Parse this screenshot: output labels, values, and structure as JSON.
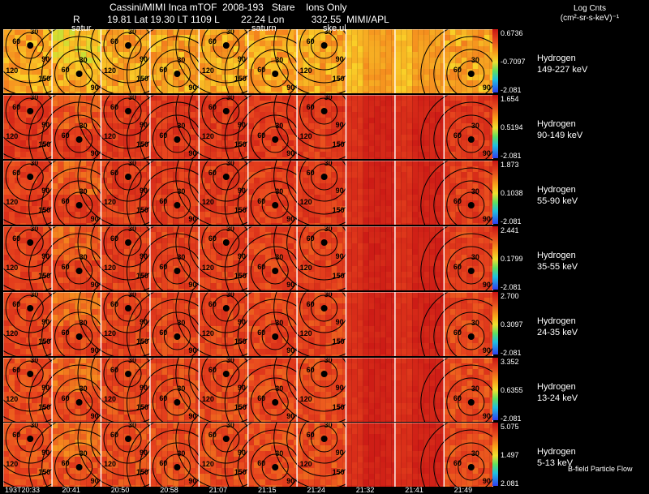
{
  "header": {
    "title": "Cassini/MIMI Inca mTOF  2008-193   Stare    Ions Only",
    "info": "R          19.81 Lat 19.30 LT 1109 L        22.24 Lon          332.55  MIMI/APL"
  },
  "colorbar": {
    "units_line1": "Log Cnts",
    "units_line2": "(cm²-sr-s-keV)⁻¹"
  },
  "panels": [
    {
      "species": "Hydrogen",
      "energy": "149-227 keV",
      "max": "0.6736",
      "mid": "-0.7097",
      "min": "-2.081"
    },
    {
      "species": "Hydrogen",
      "energy": "90-149 keV",
      "max": "1.654",
      "mid": "0.5194",
      "min": "-2.081"
    },
    {
      "species": "Hydrogen",
      "energy": "55-90 keV",
      "max": "1.873",
      "mid": "0.1038",
      "min": "-2.081"
    },
    {
      "species": "Hydrogen",
      "energy": "35-55 keV",
      "max": "2.441",
      "mid": "0.1799",
      "min": "-2.081"
    },
    {
      "species": "Hydrogen",
      "energy": "24-35 keV",
      "max": "2.700",
      "mid": "0.3097",
      "min": "-2.081"
    },
    {
      "species": "Hydrogen",
      "energy": "13-24 keV",
      "max": "3.352",
      "mid": "0.6355",
      "min": "-2.081"
    },
    {
      "species": "Hydrogen",
      "energy": "5-13 keV",
      "max": "5.075",
      "mid": "1.497",
      "min": "2.081"
    }
  ],
  "contour_labels": [
    "30",
    "60",
    "90",
    "120",
    "150"
  ],
  "frame_labels": [
    "satur",
    "saturn",
    "ske.ul"
  ],
  "footer": "B-field Particle Flow",
  "time_ticks": [
    "193T20:33",
    "20:41",
    "20:50",
    "20:58",
    "21:07",
    "21:15",
    "21:24",
    "21:32",
    "21:41",
    "21:49"
  ],
  "colors": {
    "bg": "#000000",
    "hot": "#d8261e",
    "warm": "#e8501e",
    "mid": "#f7a21a",
    "cool": "#b8e830"
  }
}
